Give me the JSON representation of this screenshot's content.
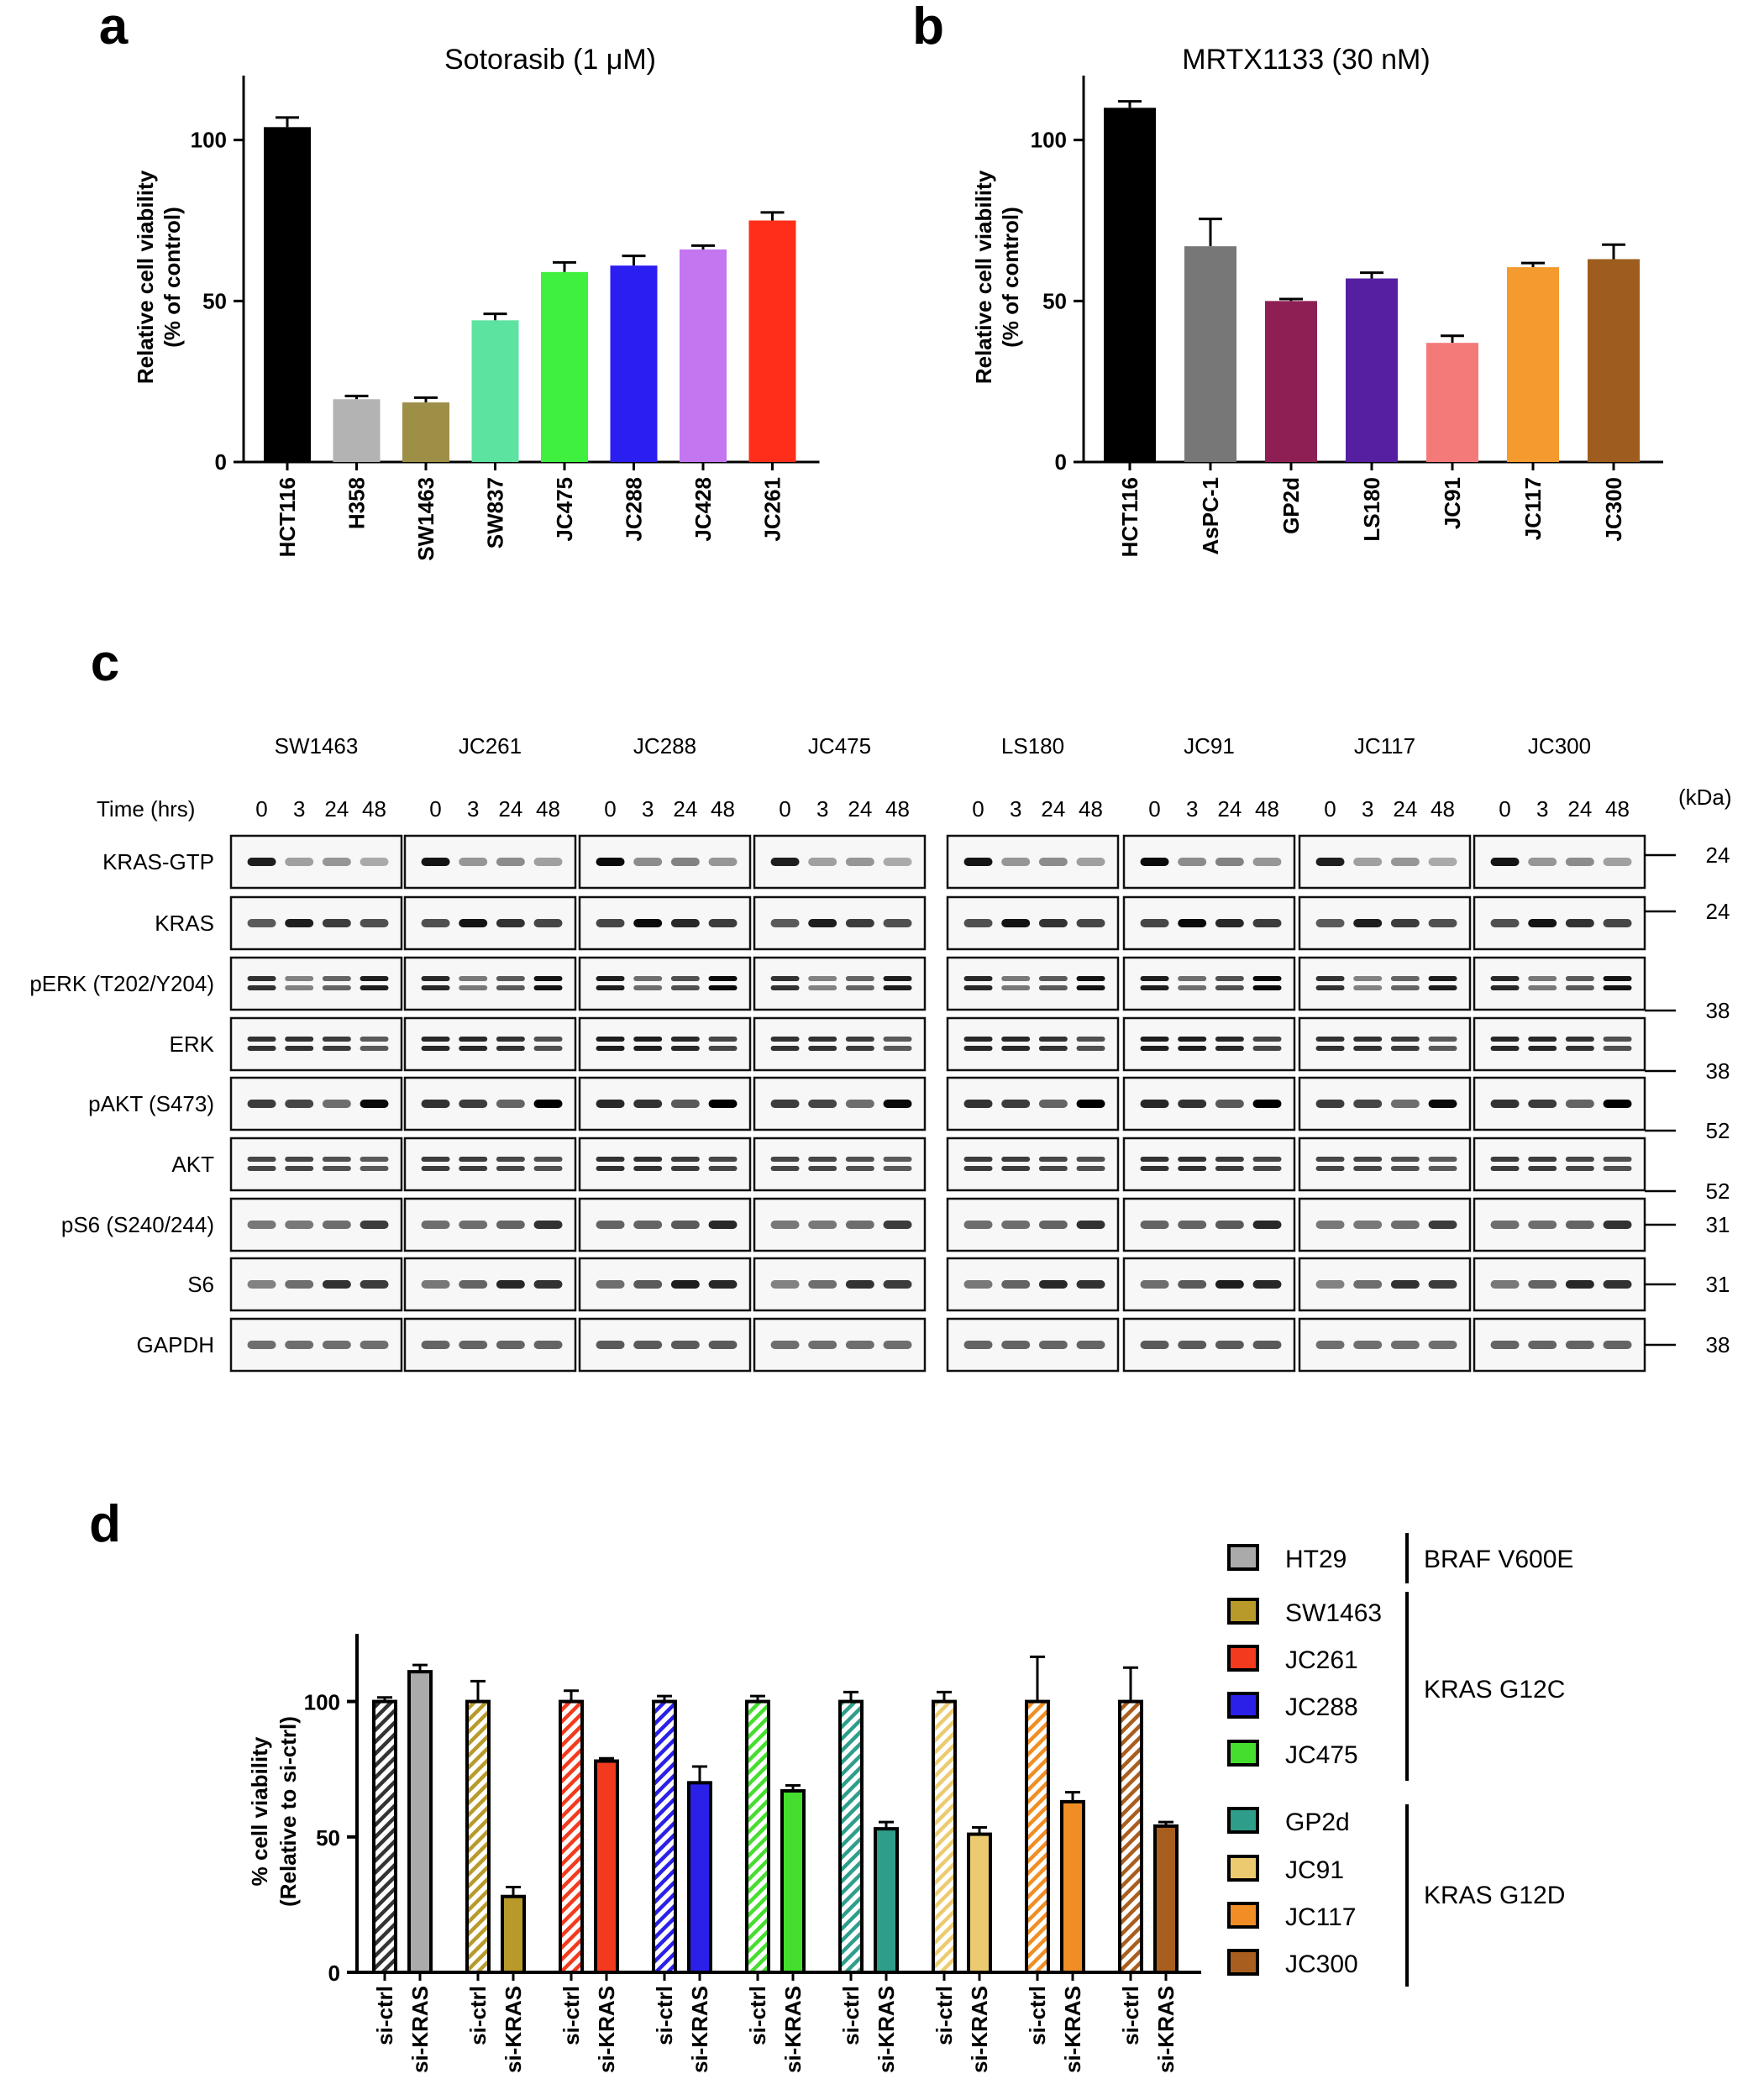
{
  "chart_data": [
    {
      "panel": "a",
      "type": "bar",
      "title": "Sotorasib (1 μM)",
      "ylabel": "Relative cell viability (% of control)",
      "ylabel_lines": [
        "Relative cell viability",
        "(% of control)"
      ],
      "ylim": [
        0,
        120
      ],
      "yticks": [
        0,
        50,
        100
      ],
      "categories": [
        "HCT116",
        "H358",
        "SW1463",
        "SW837",
        "JC475",
        "JC288",
        "JC428",
        "JC261"
      ],
      "values": [
        104,
        19.5,
        18.5,
        44,
        59,
        61,
        66,
        75
      ],
      "errors": [
        3,
        1,
        1.5,
        2,
        3,
        3,
        1.2,
        2.5
      ],
      "colors": [
        "#000000",
        "#b3b3b3",
        "#9e8f47",
        "#5ce3a0",
        "#3ff03f",
        "#2b1ef0",
        "#c475f0",
        "#ff2e1a"
      ]
    },
    {
      "panel": "b",
      "type": "bar",
      "title": "MRTX1133  (30 nM)",
      "ylabel": "Relative cell viability (% of control)",
      "ylabel_lines": [
        "Relative cell viability",
        "(% of control)"
      ],
      "ylim": [
        0,
        120
      ],
      "yticks": [
        0,
        50,
        100
      ],
      "categories": [
        "HCT116",
        "AsPC-1",
        "GP2d",
        "LS180",
        "JC91",
        "JC117",
        "JC300"
      ],
      "values": [
        110,
        67,
        50,
        57,
        37,
        60.5,
        63
      ],
      "errors": [
        2,
        8.5,
        0.6,
        1.8,
        2.2,
        1.3,
        4.5
      ],
      "colors": [
        "#000000",
        "#777777",
        "#8e1f55",
        "#561ea0",
        "#f47a7a",
        "#f49a2e",
        "#9e5d1e"
      ]
    },
    {
      "panel": "d",
      "type": "bar",
      "ylabel": "% cell viability (Relative to si-ctrl)",
      "ylabel_lines": [
        "% cell viability",
        "(Relative to si-ctrl)"
      ],
      "ylim": [
        0,
        125
      ],
      "yticks": [
        0,
        50,
        100
      ],
      "group_labels": [
        "si-ctrl",
        "si-KRAS"
      ],
      "series": [
        {
          "name": "HT29",
          "color": "#aaaaaa",
          "values": [
            100,
            111
          ],
          "errors": [
            1.5,
            2.5
          ]
        },
        {
          "name": "SW1463",
          "color": "#b89a2a",
          "values": [
            100,
            28
          ],
          "errors": [
            7.5,
            3.5
          ]
        },
        {
          "name": "JC261",
          "color": "#f43a1e",
          "values": [
            100,
            78
          ],
          "errors": [
            4,
            1
          ]
        },
        {
          "name": "JC288",
          "color": "#2b20e8",
          "values": [
            100,
            70
          ],
          "errors": [
            2,
            6
          ]
        },
        {
          "name": "JC475",
          "color": "#45de2e",
          "values": [
            100,
            67
          ],
          "errors": [
            2,
            2
          ]
        },
        {
          "name": "GP2d",
          "color": "#2e9e8a",
          "values": [
            100,
            53
          ],
          "errors": [
            3.5,
            2.5
          ]
        },
        {
          "name": "JC91",
          "color": "#eccb70",
          "values": [
            100,
            51
          ],
          "errors": [
            3.5,
            2.5
          ]
        },
        {
          "name": "JC117",
          "color": "#f08e25",
          "values": [
            100,
            63
          ],
          "errors": [
            16.5,
            3.5
          ]
        },
        {
          "name": "JC300",
          "color": "#a85e1e",
          "values": [
            100,
            54
          ],
          "errors": [
            12.5,
            1.5
          ]
        }
      ],
      "legend_groups": [
        {
          "label": "BRAF V600E",
          "members": [
            "HT29"
          ]
        },
        {
          "label": "KRAS G12C",
          "members": [
            "SW1463",
            "JC261",
            "JC288",
            "JC475"
          ]
        },
        {
          "label": "KRAS G12D",
          "members": [
            "GP2d",
            "JC91",
            "JC117",
            "JC300"
          ]
        }
      ]
    }
  ],
  "western_blot": {
    "panel": "c",
    "cell_lines": [
      "SW1463",
      "JC261",
      "JC288",
      "JC475",
      "LS180",
      "JC91",
      "JC117",
      "JC300"
    ],
    "time_label": "Time (hrs)",
    "timepoints": [
      "0",
      "3",
      "24",
      "48"
    ],
    "kda_label": "(kDa)",
    "proteins": [
      "KRAS-GTP",
      "KRAS",
      "pERK (T202/Y204)",
      "ERK",
      "pAKT (S473)",
      "AKT",
      "pS6 (S240/244)",
      "S6",
      "GAPDH"
    ],
    "markers": [
      "24",
      "24",
      "38",
      "38",
      "52",
      "52",
      "31",
      "31",
      "38"
    ]
  }
}
